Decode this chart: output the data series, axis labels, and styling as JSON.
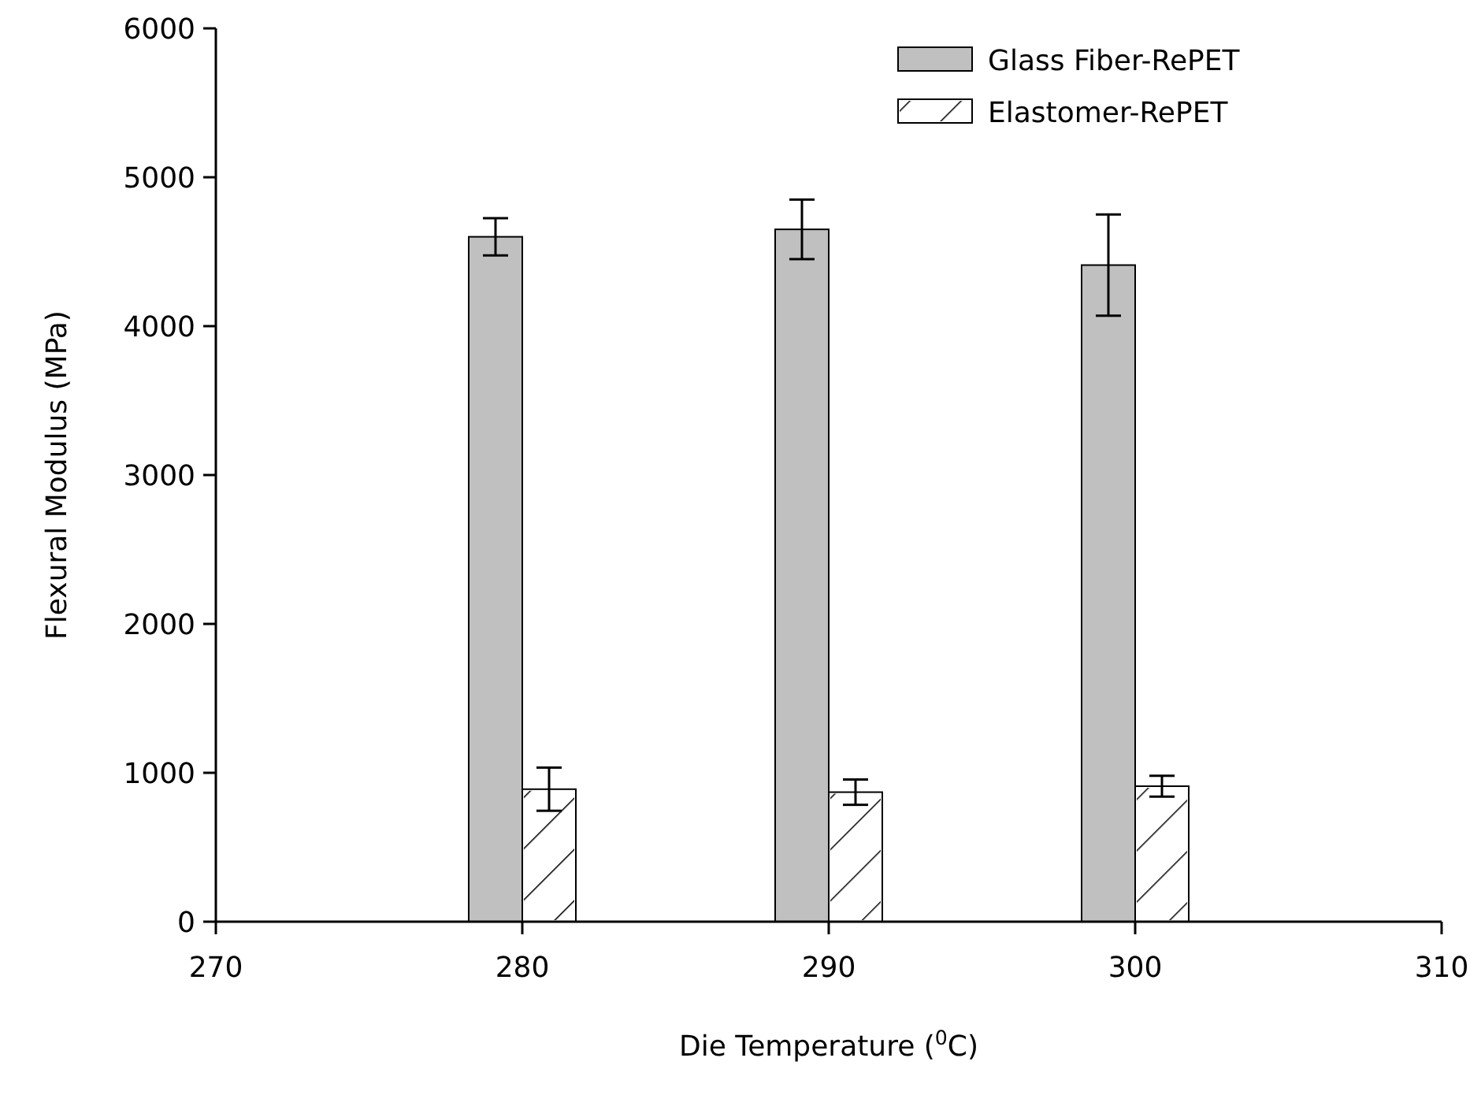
{
  "chart_data": {
    "type": "bar",
    "xlabel": "Die Temperature ($^{0}$C)",
    "ylabel": "Flexural Modulus (MPa)",
    "x": [
      280,
      290,
      300
    ],
    "series": [
      {
        "name": "Glass Fiber-RePET",
        "color": "#c0c0c0",
        "values": [
          4600,
          4650,
          4410
        ],
        "errors": [
          125,
          200,
          340
        ]
      },
      {
        "name": "Elastomer-RePET",
        "color": "#ffffff",
        "values": [
          890,
          870,
          910
        ],
        "errors": [
          145,
          85,
          70
        ]
      }
    ],
    "xlim": [
      270,
      310
    ],
    "xticks": [
      270,
      280,
      290,
      300,
      310
    ],
    "ylim": [
      0,
      6000
    ],
    "yticks": [
      0,
      1000,
      2000,
      3000,
      4000,
      5000,
      6000
    ],
    "grid": false,
    "legend": "top right"
  }
}
